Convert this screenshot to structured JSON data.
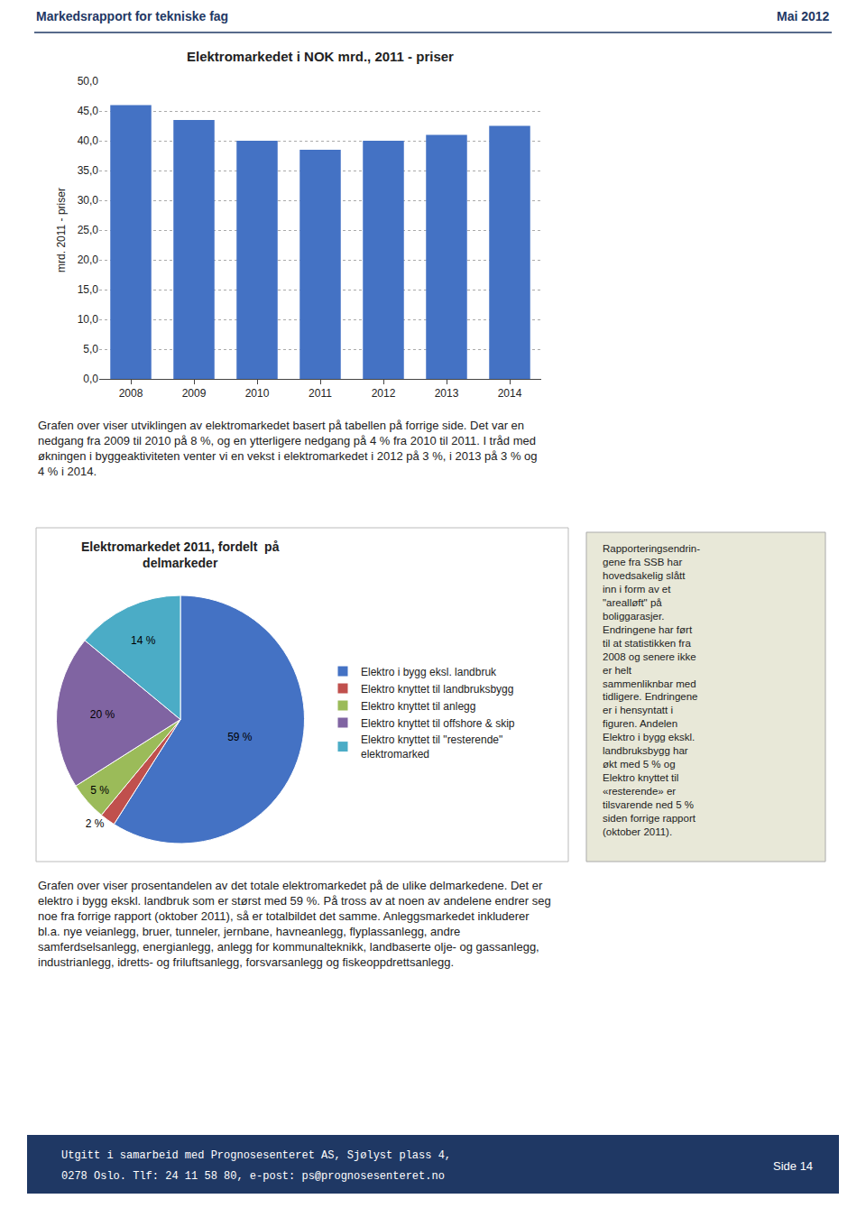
{
  "chart_data": [
    {
      "type": "bar",
      "title": "Elektromarkedet i NOK mrd., 2011 - priser",
      "categories": [
        "2008",
        "2009",
        "2010",
        "2011",
        "2012",
        "2013",
        "2014"
      ],
      "values": [
        46.0,
        43.5,
        40.0,
        38.5,
        40.0,
        41.0,
        42.5
      ],
      "color": "#4472C4",
      "ylabel": "mrd. 2011 - priser",
      "ylim": [
        0,
        50
      ],
      "yticks": [
        {
          "value": 0,
          "label": "0,0"
        },
        {
          "value": 5,
          "label": "5,0"
        },
        {
          "value": 10,
          "label": "10,0"
        },
        {
          "value": 15,
          "label": "15,0"
        },
        {
          "value": 20,
          "label": "20,0"
        },
        {
          "value": 25,
          "label": "25,0"
        },
        {
          "value": 30,
          "label": "30,0"
        },
        {
          "value": 35,
          "label": "35,0"
        },
        {
          "value": 40,
          "label": "40,0"
        },
        {
          "value": 45,
          "label": "45,0"
        },
        {
          "value": 50,
          "label": "50,0"
        }
      ],
      "grid": true,
      "annotations": [
        "Markedsrapport for tekniske fag",
        "Mai 2012",
        "Grafen over viser utviklingen av elektromarkedet basert på tabellen på forrige side. Det var en\nnedgang fra 2009 til 2010 på 8 %, og en ytterligere nedgang på 4 % fra 2010 til 2011. I tråd med\nøkningen i byggeaktiviteten venter vi en vekst i elektromarkedet i 2012 på 3 %, i 2013 på 3 % og\n4 % i 2014."
      ]
    },
    {
      "type": "pie",
      "title": "Elektromarkedet 2011, fordelt  på\ndelmarkeder",
      "categories": [
        "Elektro i bygg eksl. landbruk",
        "Elektro knyttet til landbruksbygg",
        "Elektro knyttet til anlegg",
        "Elektro knyttet til offshore & skip",
        "Elektro knyttet til \"resterende\"\nelektromarked"
      ],
      "values": [
        59,
        2,
        5,
        20,
        14
      ],
      "value_labels": [
        "59 %",
        "2 %",
        "5 %",
        "20 %",
        "14 %"
      ],
      "colors": [
        "#4472C4",
        "#C0504D",
        "#9BBB59",
        "#8064A2",
        "#4BACC6"
      ],
      "data_labels": true,
      "legend": "right",
      "annotations": [
        "Grafen over viser prosentandelen av det totale elektromarkedet på de ulike delmarkedene. Det er\nelektro i bygg ekskl. landbruk som er størst med 59 %. På tross av at noen av andelene endrer seg\nnoe fra forrige rapport (oktober 2011), så er totalbildet det samme. Anleggsmarkedet inkluderer\nbl.a. nye veianlegg, bruer, tunneler, jernbane, havneanlegg, flyplassanlegg, andre\nsamferdselsanlegg, energianlegg, anlegg for kommunalteknikk, landbaserte olje- og gassanlegg,\nindustrianlegg, idretts- og friluftsanlegg, forsvarsanlegg og fiskeoppdrettsanlegg.",
        "Rapporteringsendrin-\ngene fra SSB har\nhovedsakelig slått\ninn i form av et\n\"arealløft\" på\nboliggarasjer.\nEndringene har ført\ntil at statistikken fra\n2008 og senere ikke\ner helt\nsammenliknbar med\ntidligere. Endringene\ner i hensyntatt i\nfiguren. Andelen\nElektro i bygg ekskl.\nlandbruksbygg har\nøkt med 5 % og\nElektro knyttet til\n«resterende» er\ntilsvarende ned 5 %\nsiden forrige rapport\n(oktober 2011).",
        "Utgitt i samarbeid med Prognosesenteret AS, Sjølyst plass 4,",
        "0278 Oslo. Tlf: 24 11 58 80, e-post: ps@prognosesenteret.no",
        "Side 14"
      ]
    }
  ]
}
